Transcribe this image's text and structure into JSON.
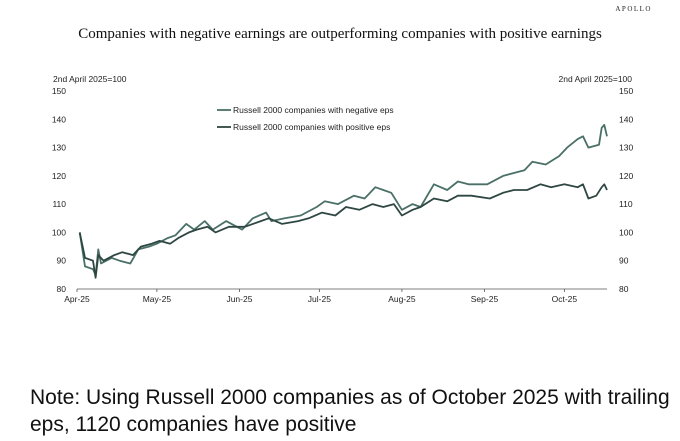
{
  "brand": "APOLLO",
  "note": "Note: Using Russell 2000 companies as of October 2025 with trailing eps, 1120 companies have positive",
  "chart_data": {
    "type": "line",
    "title": "Companies with negative earnings are outperforming companies with positive earnings",
    "left_axis_label": "2nd April 2025=100",
    "right_axis_label": "2nd April 2025=100",
    "ylim": [
      80,
      150
    ],
    "yticks": [
      80,
      90,
      100,
      110,
      120,
      130,
      140,
      150
    ],
    "x_ticks": [
      "Apr-25",
      "May-25",
      "Jun-25",
      "Jul-25",
      "Aug-25",
      "Sep-25",
      "Oct-25"
    ],
    "x_tick_dates": [
      "2025-04-01",
      "2025-05-01",
      "2025-06-01",
      "2025-07-01",
      "2025-08-01",
      "2025-09-01",
      "2025-10-01"
    ],
    "x_range": [
      "2025-04-01",
      "2025-10-17"
    ],
    "legend_position": "top-left",
    "colors": {
      "negative": "#4a7068",
      "positive": "#2f4743",
      "axis": "#555555"
    },
    "series": [
      {
        "name": "Russell 2000 companies with negative eps",
        "color": "#4a7068",
        "points": [
          [
            "2025-04-02",
            100
          ],
          [
            "2025-04-04",
            88
          ],
          [
            "2025-04-07",
            87
          ],
          [
            "2025-04-08",
            85
          ],
          [
            "2025-04-09",
            94
          ],
          [
            "2025-04-10",
            89
          ],
          [
            "2025-04-14",
            91
          ],
          [
            "2025-04-17",
            90
          ],
          [
            "2025-04-21",
            89
          ],
          [
            "2025-04-24",
            94
          ],
          [
            "2025-04-28",
            95
          ],
          [
            "2025-05-01",
            96
          ],
          [
            "2025-05-05",
            98
          ],
          [
            "2025-05-08",
            99
          ],
          [
            "2025-05-12",
            103
          ],
          [
            "2025-05-15",
            101
          ],
          [
            "2025-05-19",
            104
          ],
          [
            "2025-05-22",
            101
          ],
          [
            "2025-05-27",
            104
          ],
          [
            "2025-06-02",
            101
          ],
          [
            "2025-06-06",
            105
          ],
          [
            "2025-06-11",
            107
          ],
          [
            "2025-06-13",
            104
          ],
          [
            "2025-06-18",
            105
          ],
          [
            "2025-06-24",
            106
          ],
          [
            "2025-06-30",
            109
          ],
          [
            "2025-07-03",
            111
          ],
          [
            "2025-07-08",
            110
          ],
          [
            "2025-07-14",
            113
          ],
          [
            "2025-07-18",
            112
          ],
          [
            "2025-07-22",
            116
          ],
          [
            "2025-07-25",
            115
          ],
          [
            "2025-07-28",
            114
          ],
          [
            "2025-08-01",
            108
          ],
          [
            "2025-08-05",
            110
          ],
          [
            "2025-08-08",
            109
          ],
          [
            "2025-08-13",
            117
          ],
          [
            "2025-08-18",
            115
          ],
          [
            "2025-08-22",
            118
          ],
          [
            "2025-08-26",
            117
          ],
          [
            "2025-09-02",
            117
          ],
          [
            "2025-09-08",
            120
          ],
          [
            "2025-09-12",
            121
          ],
          [
            "2025-09-16",
            122
          ],
          [
            "2025-09-19",
            125
          ],
          [
            "2025-09-24",
            124
          ],
          [
            "2025-09-29",
            127
          ],
          [
            "2025-10-02",
            130
          ],
          [
            "2025-10-06",
            133
          ],
          [
            "2025-10-08",
            134
          ],
          [
            "2025-10-10",
            130
          ],
          [
            "2025-10-14",
            131
          ],
          [
            "2025-10-15",
            137
          ],
          [
            "2025-10-16",
            138
          ],
          [
            "2025-10-17",
            134
          ]
        ]
      },
      {
        "name": "Russell 2000 companies with positive eps",
        "color": "#2f4743",
        "points": [
          [
            "2025-04-02",
            100
          ],
          [
            "2025-04-04",
            91
          ],
          [
            "2025-04-07",
            90
          ],
          [
            "2025-04-08",
            84
          ],
          [
            "2025-04-09",
            92
          ],
          [
            "2025-04-11",
            90
          ],
          [
            "2025-04-15",
            92
          ],
          [
            "2025-04-18",
            93
          ],
          [
            "2025-04-22",
            92
          ],
          [
            "2025-04-25",
            95
          ],
          [
            "2025-04-29",
            96
          ],
          [
            "2025-05-02",
            97
          ],
          [
            "2025-05-06",
            96
          ],
          [
            "2025-05-09",
            98
          ],
          [
            "2025-05-13",
            100
          ],
          [
            "2025-05-16",
            101
          ],
          [
            "2025-05-20",
            102
          ],
          [
            "2025-05-23",
            100
          ],
          [
            "2025-05-28",
            102
          ],
          [
            "2025-06-03",
            102
          ],
          [
            "2025-06-09",
            104
          ],
          [
            "2025-06-12",
            105
          ],
          [
            "2025-06-17",
            103
          ],
          [
            "2025-06-23",
            104
          ],
          [
            "2025-06-27",
            105
          ],
          [
            "2025-07-02",
            107
          ],
          [
            "2025-07-07",
            106
          ],
          [
            "2025-07-11",
            109
          ],
          [
            "2025-07-16",
            108
          ],
          [
            "2025-07-21",
            110
          ],
          [
            "2025-07-25",
            109
          ],
          [
            "2025-07-29",
            110
          ],
          [
            "2025-08-01",
            106
          ],
          [
            "2025-08-05",
            108
          ],
          [
            "2025-08-08",
            109
          ],
          [
            "2025-08-13",
            112
          ],
          [
            "2025-08-18",
            111
          ],
          [
            "2025-08-22",
            113
          ],
          [
            "2025-08-27",
            113
          ],
          [
            "2025-09-03",
            112
          ],
          [
            "2025-09-08",
            114
          ],
          [
            "2025-09-12",
            115
          ],
          [
            "2025-09-17",
            115
          ],
          [
            "2025-09-22",
            117
          ],
          [
            "2025-09-26",
            116
          ],
          [
            "2025-10-01",
            117
          ],
          [
            "2025-10-06",
            116
          ],
          [
            "2025-10-08",
            117
          ],
          [
            "2025-10-10",
            112
          ],
          [
            "2025-10-13",
            113
          ],
          [
            "2025-10-15",
            116
          ],
          [
            "2025-10-16",
            117
          ],
          [
            "2025-10-17",
            115
          ]
        ]
      }
    ]
  }
}
